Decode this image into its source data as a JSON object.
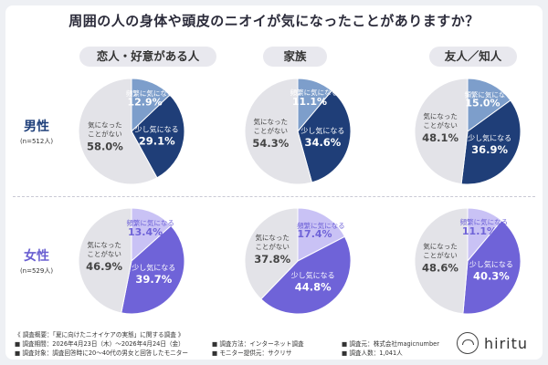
{
  "title": "周囲の人の身体や頭皮のニオイが気になったことがありますか？",
  "columns": [
    "恋人・好意がある人",
    "家族",
    "友人／知人"
  ],
  "rows": [
    {
      "label": "男性",
      "n": "(n=512人)"
    },
    {
      "label": "女性",
      "n": "(n=529人)"
    }
  ],
  "colors": {
    "male_frequent": "#7d9ecb",
    "male_some": "#1f3e78",
    "female_frequent": "#c9c2f5",
    "female_some": "#6f63d8",
    "none": "#e3e3e8",
    "label_dark": "#444444",
    "label_light": "#ffffff"
  },
  "chart_data": [
    {
      "type": "pie",
      "group": "男性",
      "panel": "恋人・好意がある人",
      "categories": [
        "頻繁に気になる",
        "少し気になる",
        "気になったことがない"
      ],
      "values": [
        12.9,
        29.1,
        58.0
      ]
    },
    {
      "type": "pie",
      "group": "男性",
      "panel": "家族",
      "categories": [
        "頻繁に気になる",
        "少し気になる",
        "気になったことがない"
      ],
      "values": [
        11.1,
        34.6,
        54.3
      ]
    },
    {
      "type": "pie",
      "group": "男性",
      "panel": "友人／知人",
      "categories": [
        "頻繁に気になる",
        "少し気になる",
        "気になったことがない"
      ],
      "values": [
        15.0,
        36.9,
        48.1
      ]
    },
    {
      "type": "pie",
      "group": "女性",
      "panel": "恋人・好意がある人",
      "categories": [
        "頻繁に気になる",
        "少し気になる",
        "気になったことがない"
      ],
      "values": [
        13.4,
        39.7,
        46.9
      ]
    },
    {
      "type": "pie",
      "group": "女性",
      "panel": "家族",
      "categories": [
        "頻繁に気になる",
        "少し気になる",
        "気になったことがない"
      ],
      "values": [
        17.4,
        44.8,
        37.8
      ]
    },
    {
      "type": "pie",
      "group": "女性",
      "panel": "友人／知人",
      "categories": [
        "頻繁に気になる",
        "少し気になる",
        "気になったことがない"
      ],
      "values": [
        11.1,
        40.3,
        48.6
      ]
    }
  ],
  "slice_labels": {
    "frequent": "頻繁に気になる",
    "some": "少し気になる",
    "none_line1": "気になった",
    "none_line2": "ことがない"
  },
  "footer": {
    "heading": "《 調査概要：「夏に向けたニオイケアの実態」に関する調査 》",
    "period": "■ 調査期間：2026年4月23日（木）～2026年4月24日（金）",
    "method": "■ 調査方法：インターネット調査",
    "source": "■ 調査元：株式会社magicnumber",
    "target": "■ 調査対象：調査回答時に20～40代の男女と回答したモニター",
    "provider": "■ モニター提供元：サクリサ",
    "count": "■ 調査人数：1,041人"
  },
  "logo": {
    "text": "hiritu",
    "icon": "hiritu-logo-icon"
  }
}
